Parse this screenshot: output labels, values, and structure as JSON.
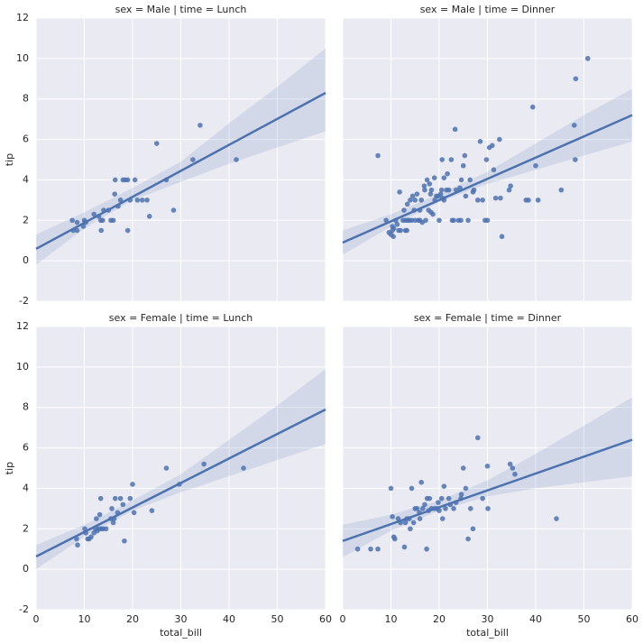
{
  "chart_data": [
    {
      "type": "scatter",
      "title": "sex = Male | time = Lunch",
      "ylabel": "tip",
      "color": "#4c72b0",
      "xlim": [
        0,
        60
      ],
      "xticks": [
        0,
        10,
        20,
        30,
        40,
        50,
        60
      ],
      "ylim": [
        -2,
        12
      ],
      "yticks": [
        -2,
        0,
        2,
        4,
        6,
        8,
        10,
        12
      ],
      "grid": true,
      "x": [
        7.5,
        7.7,
        8.5,
        8.5,
        9.8,
        10,
        10.3,
        12,
        13,
        13.4,
        13.5,
        13.8,
        14,
        15,
        15.5,
        16,
        16.3,
        16.4,
        17,
        17.5,
        18,
        18.5,
        19,
        19.5,
        19,
        20.5,
        21,
        22,
        23,
        23.5,
        25,
        27,
        28.5,
        32.5,
        34,
        41.5
      ],
      "values": [
        2,
        1.5,
        1.9,
        1.5,
        1.7,
        2,
        1.9,
        2.3,
        2.2,
        2,
        1.5,
        2,
        2.5,
        2.5,
        2,
        2,
        3.3,
        4,
        2.7,
        3,
        4,
        4,
        4,
        3,
        1.5,
        4,
        3,
        3,
        3,
        2.2,
        5.8,
        4,
        2.5,
        5,
        6.7,
        5
      ],
      "fit": {
        "x": [
          0,
          60
        ],
        "values": [
          0.59,
          8.3
        ]
      },
      "ci": {
        "x": [
          0,
          10,
          20,
          30,
          40,
          50,
          60
        ],
        "lower": [
          -0.2,
          1.6,
          3.0,
          3.9,
          4.8,
          5.6,
          6.4
        ],
        "upper": [
          1.3,
          2.4,
          3.6,
          4.9,
          6.8,
          8.6,
          10.5
        ]
      }
    },
    {
      "type": "scatter",
      "title": "sex = Male | time = Dinner",
      "color": "#4c72b0",
      "xlim": [
        0,
        60
      ],
      "xticks": [
        0,
        10,
        20,
        30,
        40,
        50,
        60
      ],
      "ylim": [
        -2,
        12
      ],
      "yticks": [
        -2,
        0,
        2,
        4,
        6,
        8,
        10,
        12
      ],
      "grid": true,
      "x": [
        7.3,
        9,
        9.6,
        10,
        10.3,
        10.3,
        10.5,
        10.6,
        11,
        11.3,
        11.6,
        11.8,
        12,
        12.5,
        12.7,
        13,
        13,
        13.3,
        13.4,
        13.5,
        13.8,
        14,
        14.3,
        14.5,
        14.8,
        15,
        15,
        15.4,
        15.7,
        16,
        16,
        16.3,
        16.5,
        16.9,
        17,
        17.2,
        17.5,
        17.8,
        18,
        18.2,
        18.3,
        18.4,
        18.7,
        19,
        19.1,
        19.4,
        19.8,
        20,
        20.3,
        20.5,
        20.6,
        20.7,
        21,
        21,
        21.5,
        21.7,
        22,
        22.5,
        22.7,
        23,
        23.3,
        23.5,
        24,
        24.3,
        24.5,
        24.6,
        25,
        25.3,
        25.5,
        26,
        26.4,
        27,
        27.2,
        28,
        28.5,
        29,
        29.5,
        29.8,
        30,
        30.4,
        31,
        31.3,
        31.7,
        32.5,
        32.7,
        33,
        34.5,
        34.8,
        38,
        38.5,
        39.4,
        40,
        40.5,
        45.3,
        48,
        48.2,
        48.3,
        50.8
      ],
      "values": [
        5.2,
        2,
        1.4,
        1.3,
        1.5,
        1.7,
        1.2,
        1.6,
        2,
        1.8,
        1.5,
        3.4,
        1.5,
        2,
        2.5,
        2,
        1.5,
        1.5,
        2.8,
        2,
        2,
        3,
        2,
        3.2,
        2.5,
        2,
        3,
        3.3,
        2,
        2.5,
        2,
        3,
        1.9,
        3.7,
        3.5,
        2,
        4,
        2.5,
        3.8,
        3.3,
        2.4,
        3.5,
        2.3,
        4.1,
        3,
        3.2,
        3.2,
        2,
        3.3,
        3.5,
        5,
        3.1,
        4.1,
        3,
        3.5,
        4.3,
        3.5,
        5,
        2,
        2,
        6.5,
        3.5,
        2,
        3.6,
        2,
        4,
        4.7,
        5.2,
        3.2,
        2,
        4,
        3.4,
        3.5,
        3,
        5.9,
        3,
        2,
        5,
        2,
        5.6,
        5.7,
        4.5,
        3.1,
        6,
        3.1,
        1.2,
        3.5,
        3.7,
        3,
        3,
        7.6,
        4.7,
        3,
        3.5,
        6.7,
        5,
        9,
        10
      ],
      "fit": {
        "x": [
          0,
          60
        ],
        "values": [
          0.9,
          7.2
        ]
      },
      "ci": {
        "x": [
          0,
          10,
          20,
          30,
          40,
          50,
          60
        ],
        "lower": [
          0.3,
          1.7,
          2.9,
          3.8,
          4.5,
          5.2,
          5.9
        ],
        "upper": [
          1.5,
          2.3,
          3.3,
          4.4,
          5.8,
          7.2,
          8.5
        ]
      }
    },
    {
      "type": "scatter",
      "title": "sex = Female | time = Lunch",
      "ylabel": "tip",
      "xlabel": "total_bill",
      "color": "#4c72b0",
      "xlim": [
        0,
        60
      ],
      "xticks": [
        0,
        10,
        20,
        30,
        40,
        50,
        60
      ],
      "ylim": [
        -2,
        12
      ],
      "yticks": [
        -2,
        0,
        2,
        4,
        6,
        8,
        10,
        12
      ],
      "grid": true,
      "x": [
        8.4,
        8.6,
        10.1,
        10.3,
        10.7,
        11,
        11.4,
        12,
        12.3,
        12.5,
        12.7,
        13,
        13.2,
        13.4,
        13.5,
        13.9,
        14.5,
        15.5,
        15.7,
        16,
        16.2,
        16.4,
        16.9,
        17.5,
        18,
        18.3,
        19.5,
        20,
        20.3,
        24,
        27,
        29.7,
        34.8,
        43
      ],
      "values": [
        1.5,
        1.2,
        2,
        1.8,
        1.5,
        1.5,
        1.6,
        1.8,
        2,
        2.5,
        1.9,
        2,
        2.7,
        3.5,
        2,
        2,
        2,
        2.5,
        3,
        2.3,
        2.5,
        3.5,
        2.8,
        3.5,
        3.2,
        1.4,
        3.5,
        4.2,
        2.8,
        2.9,
        5,
        4.2,
        5.2,
        5
      ],
      "fit": {
        "x": [
          0,
          60
        ],
        "values": [
          0.63,
          7.9
        ]
      },
      "ci": {
        "x": [
          0,
          10,
          20,
          30,
          40,
          50,
          60
        ],
        "lower": [
          0.0,
          1.6,
          2.9,
          3.8,
          4.6,
          5.4,
          6.2
        ],
        "upper": [
          1.2,
          2.2,
          3.4,
          4.7,
          6.4,
          8.1,
          9.9
        ]
      }
    },
    {
      "type": "scatter",
      "title": "sex = Female | time = Dinner",
      "xlabel": "total_bill",
      "color": "#4c72b0",
      "xlim": [
        0,
        60
      ],
      "xticks": [
        0,
        10,
        20,
        30,
        40,
        50,
        60
      ],
      "ylim": [
        -2,
        12
      ],
      "yticks": [
        -2,
        0,
        2,
        4,
        6,
        8,
        10,
        12
      ],
      "grid": true,
      "x": [
        3.1,
        5.8,
        7.3,
        10,
        10.3,
        10.6,
        10.8,
        11.5,
        12,
        12.8,
        13,
        13.3,
        13.8,
        14,
        14.3,
        14.7,
        15,
        15.4,
        15.9,
        16,
        16.3,
        16.6,
        17,
        17.4,
        17.5,
        17.8,
        18,
        18.4,
        19,
        19.5,
        19.8,
        20,
        20.5,
        20.7,
        21,
        21.3,
        22,
        22.3,
        23,
        23.5,
        24.5,
        24.6,
        25,
        25.5,
        26,
        26.5,
        27,
        28,
        29,
        30,
        30.1,
        34.7,
        35.2,
        35.7,
        44.3
      ],
      "values": [
        1,
        1,
        1,
        4,
        2.6,
        1.6,
        1.5,
        2.5,
        2.3,
        1.1,
        2.3,
        2.5,
        2.5,
        2,
        4,
        2.3,
        3,
        3,
        2.8,
        2.5,
        4.3,
        3,
        3.2,
        1,
        3.5,
        2.9,
        3.5,
        3,
        3,
        3,
        3.3,
        2.9,
        3.5,
        2.5,
        4.1,
        3,
        3.5,
        3.2,
        3,
        3.3,
        3.5,
        3.7,
        5,
        4,
        1.5,
        3,
        2,
        6.5,
        3.5,
        5.1,
        3,
        5.2,
        5,
        4.7,
        2.5
      ],
      "fit": {
        "x": [
          0,
          60
        ],
        "values": [
          1.4,
          6.4
        ]
      },
      "ci": {
        "x": [
          0,
          10,
          20,
          30,
          40,
          50,
          60
        ],
        "lower": [
          0.6,
          1.9,
          2.9,
          3.6,
          4.0,
          4.3,
          4.6
        ],
        "upper": [
          2.2,
          2.7,
          3.4,
          4.4,
          5.7,
          7.1,
          8.5
        ]
      }
    }
  ]
}
